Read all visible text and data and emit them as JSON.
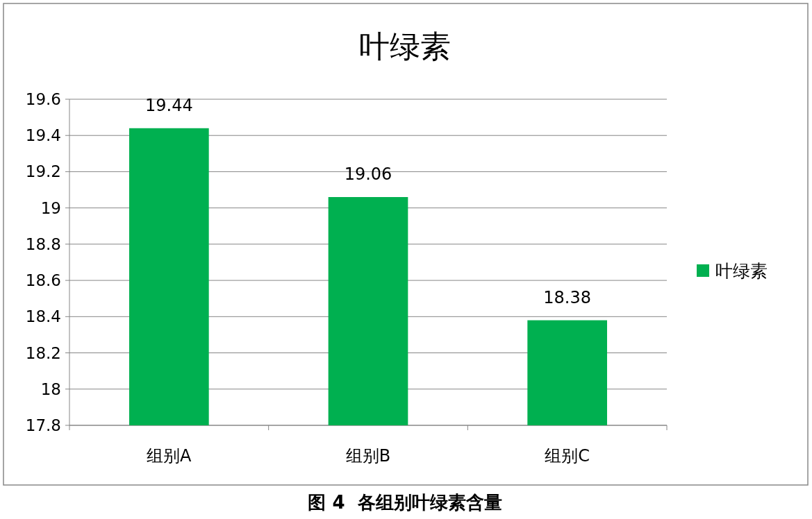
{
  "chart_data": {
    "type": "bar",
    "title": "叶绿素",
    "categories": [
      "组别A",
      "组别B",
      "组别C"
    ],
    "series": [
      {
        "name": "叶绿素",
        "color": "#00b050",
        "values": [
          19.44,
          19.06,
          18.38
        ]
      }
    ],
    "ylim": [
      17.8,
      19.6
    ],
    "yticks": [
      17.8,
      18,
      18.2,
      18.4,
      18.6,
      18.8,
      19,
      19.2,
      19.4,
      19.6
    ],
    "grid": "y",
    "legend": "right",
    "data_labels": true,
    "annotations": [
      "图 4  各组别叶绿素含量"
    ]
  }
}
